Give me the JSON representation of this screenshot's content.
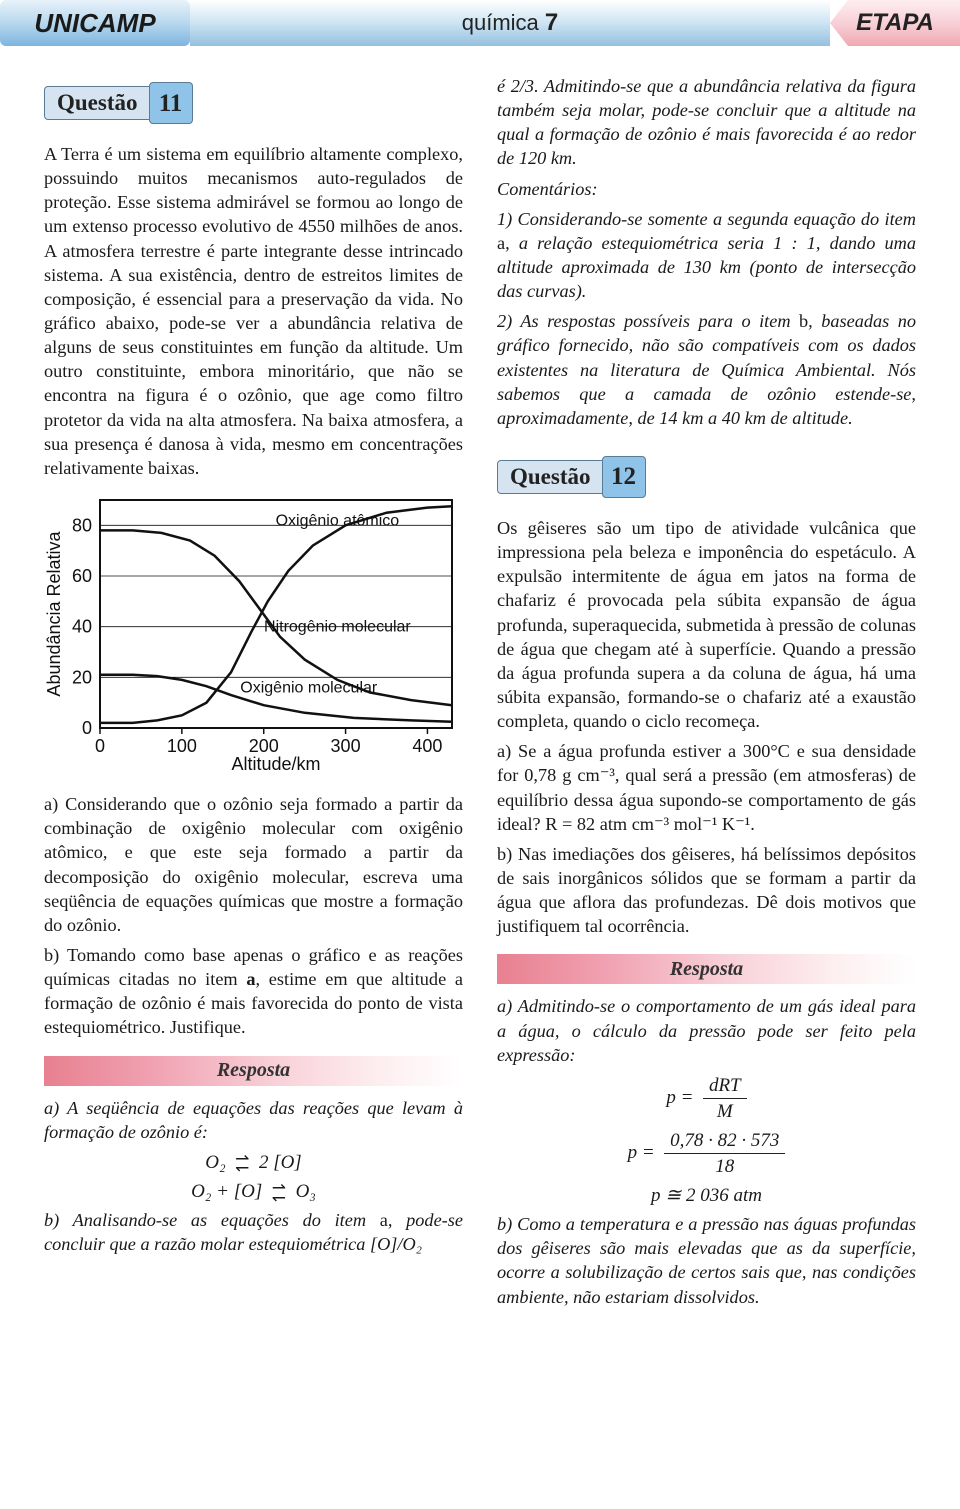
{
  "header": {
    "left": "UNICAMP",
    "center_prefix": "química ",
    "center_num": "7",
    "right": "ETAPA"
  },
  "q11": {
    "heading": "Questão",
    "number": "11",
    "body": "A Terra é um sistema em equilíbrio altamente complexo, possuindo muitos mecanismos auto-regulados de proteção. Esse sistema admirável se formou ao longo de um extenso processo evolutivo de 4550 milhões de anos. A atmosfera terrestre é parte integrante desse intrincado sistema. A sua existência, dentro de estreitos limites de composição, é essencial para a preservação da vida. No gráfico abaixo, pode-se ver a abundância relativa de alguns de seus constituintes em função da altitude. Um outro constituinte, embora minoritário, que não se encontra na figura é o ozônio, que age como filtro protetor da vida na alta atmosfera. Na baixa atmosfera, a sua presença é danosa à vida, mesmo em concentrações relativamente baixas.",
    "part_a": "a) Considerando que o ozônio seja formado a partir da combinação de oxigênio molecular com oxigênio atômico, e que este seja formado a partir da decomposição do oxigênio molecular, escreva uma seqüência de equações químicas que mostre a formação do ozônio.",
    "part_b_pre": "b) Tomando como base apenas o gráfico e as reações químicas citadas no item ",
    "part_b_bold": "a",
    "part_b_post": ", estime em que altitude a formação de ozônio é mais favorecida do ponto de vista estequiométrico. Justifique.",
    "resposta_label": "Resposta",
    "resp_a_intro": "a) A seqüência de equações das reações que levam à formação de ozônio é:",
    "resp_eq1_left": "O₂",
    "resp_eq1_right": "2 [O]",
    "resp_eq2_left": "O₂ + [O]",
    "resp_eq2_right": "O₃",
    "resp_b_pre": "b) Analisando-se as equações do item ",
    "resp_b_a": "a",
    "resp_b_mid": ", pode-se concluir que a razão molar estequiométrica [O]/O₂"
  },
  "chart": {
    "type": "line",
    "x_label": "Altitude/km",
    "y_label": "Abundância Relativa",
    "x_ticks": [
      0,
      100,
      200,
      300,
      400
    ],
    "y_ticks": [
      0,
      20,
      40,
      60,
      80
    ],
    "xlim": [
      0,
      430
    ],
    "ylim": [
      0,
      90
    ],
    "background_color": "#ffffff",
    "grid_color": "#111111",
    "grid_width": 0.8,
    "axis_width": 2,
    "line_width": 2.5,
    "line_color": "#111111",
    "series": [
      {
        "name": "Oxigênio atômico",
        "label_x": 290,
        "label_y_val": 80,
        "points": [
          [
            0,
            2
          ],
          [
            40,
            2
          ],
          [
            70,
            3
          ],
          [
            100,
            5
          ],
          [
            130,
            10
          ],
          [
            160,
            22
          ],
          [
            185,
            38
          ],
          [
            205,
            50
          ],
          [
            230,
            62
          ],
          [
            260,
            72
          ],
          [
            300,
            80
          ],
          [
            350,
            85
          ],
          [
            400,
            87
          ],
          [
            430,
            87.5
          ]
        ]
      },
      {
        "name": "Nitrogênio molecular",
        "label_x": 290,
        "label_y_val": 38,
        "points": [
          [
            0,
            78
          ],
          [
            40,
            78
          ],
          [
            75,
            77
          ],
          [
            110,
            74
          ],
          [
            140,
            68
          ],
          [
            170,
            58
          ],
          [
            195,
            47
          ],
          [
            220,
            36
          ],
          [
            250,
            27
          ],
          [
            290,
            19
          ],
          [
            330,
            14
          ],
          [
            380,
            11
          ],
          [
            430,
            9
          ]
        ]
      },
      {
        "name": "Oxigênio molecular",
        "label_x": 255,
        "label_y_val": 14,
        "points": [
          [
            0,
            21
          ],
          [
            40,
            21
          ],
          [
            70,
            20.5
          ],
          [
            100,
            19
          ],
          [
            130,
            16.5
          ],
          [
            160,
            13
          ],
          [
            200,
            9
          ],
          [
            250,
            6
          ],
          [
            310,
            4
          ],
          [
            380,
            3
          ],
          [
            430,
            2.5
          ]
        ]
      }
    ]
  },
  "col2": {
    "cont1_pre": "é 2/3. Admitindo-se que a abundância relativa da figura também seja molar, pode-se concluir que a altitude na qual a formação de ozônio é mais favorecida é ao redor de 120 km.",
    "com_label": "Comentários:",
    "com1_pre": "1) Considerando-se somente a segunda equação do item ",
    "com1_a": "a",
    "com1_post": ", a relação estequiométrica seria 1 : 1, dando uma altitude aproximada de 130 km (ponto de intersecção das curvas).",
    "com2_pre": "2) As respostas possíveis para o item ",
    "com2_b": "b",
    "com2_post": ", baseadas no gráfico fornecido, não são compatíveis com os dados existentes na literatura de Química Ambiental. Nós sabemos que a camada de ozônio estende-se, aproximadamente, de 14 km a 40 km de altitude."
  },
  "q12": {
    "heading": "Questão",
    "number": "12",
    "body": "Os gêiseres são um tipo de atividade vulcânica que impressiona pela beleza e imponência do espetáculo. A expulsão intermitente de água em jatos na forma de chafariz é provocada pela súbita expansão de água profunda, superaquecida, submetida à pressão de colunas de água que chegam até à superfície. Quando a pressão da água profunda supera a da coluna de água, há uma súbita expansão, formando-se o chafariz até a exaustão completa, quando o ciclo recomeça.",
    "part_a": "a) Se a água profunda estiver a 300°C e sua densidade for 0,78 g cm⁻³, qual será a pressão (em atmosferas) de equilíbrio dessa água supondo-se comportamento de gás ideal? R = 82 atm cm⁻³ mol⁻¹ K⁻¹.",
    "part_b": "b) Nas imediações dos gêiseres, há belíssimos depósitos de sais inorgânicos sólidos que se formam a partir da água que aflora das profundezas. Dê dois motivos que justifiquem tal ocorrência.",
    "resposta_label": "Resposta",
    "resp_a_intro": "a) Admitindo-se o comportamento de um gás ideal para a água, o cálculo da pressão pode ser feito pela expressão:",
    "eq1_lhs": "p =",
    "eq1_num": "dRT",
    "eq1_den": "M",
    "eq2_lhs": "p =",
    "eq2_num": "0,78 · 82 · 573",
    "eq2_den": "18",
    "eq3": "p ≅ 2 036 atm",
    "resp_b": "b) Como a temperatura e a pressão nas águas profundas dos gêiseres são mais elevadas que as da superfície, ocorre a solubilização de certos sais que, nas condições ambiente, não estariam dissolvidos."
  }
}
